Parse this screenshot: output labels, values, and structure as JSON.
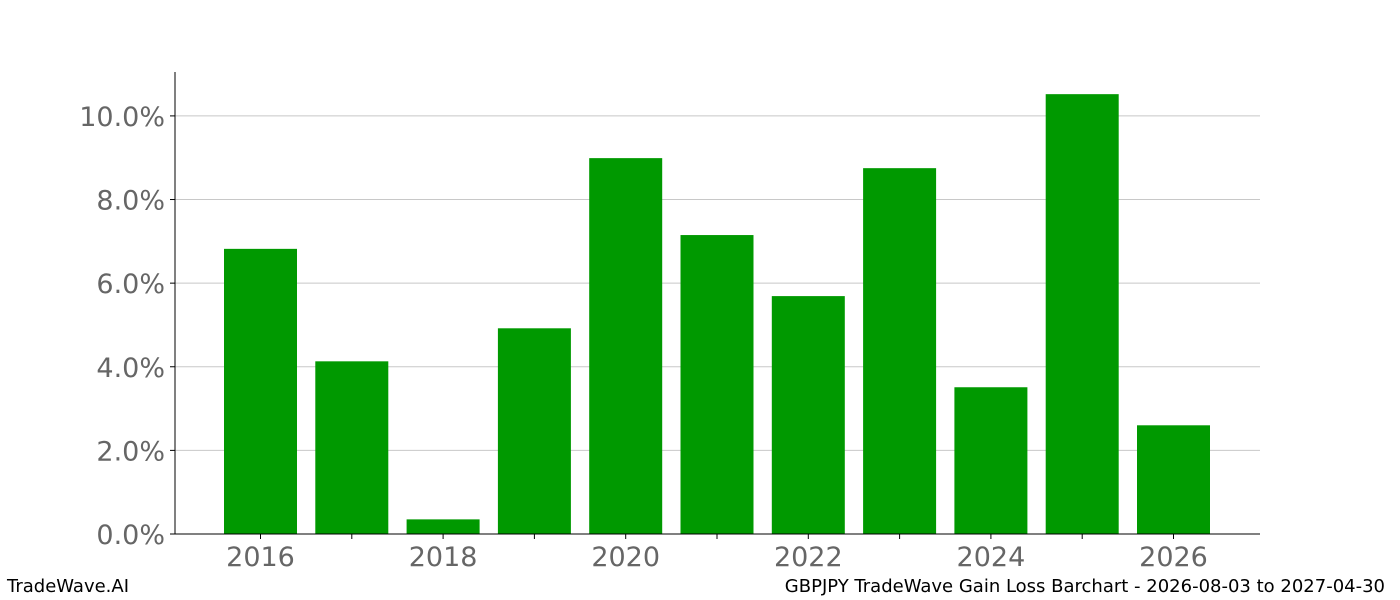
{
  "footer": {
    "brand": "TradeWave.AI",
    "caption": "GBPJPY TradeWave Gain Loss Barchart - 2026-08-03 to 2027-04-30"
  },
  "chart_data": {
    "type": "bar",
    "title": "",
    "xlabel": "",
    "ylabel": "",
    "categories": [
      "2016",
      "2017",
      "2018",
      "2019",
      "2020",
      "2021",
      "2022",
      "2023",
      "2024",
      "2025",
      "2026"
    ],
    "values": [
      6.82,
      4.13,
      0.35,
      4.92,
      8.99,
      7.15,
      5.69,
      8.75,
      3.51,
      10.52,
      2.6
    ],
    "x_tick_labels": [
      "2016",
      "2018",
      "2020",
      "2022",
      "2024",
      "2026"
    ],
    "y_ticks": [
      0,
      2,
      4,
      6,
      8,
      10
    ],
    "y_tick_labels": [
      "0.0%",
      "2.0%",
      "4.0%",
      "6.0%",
      "8.0%",
      "10.0%"
    ],
    "ylim": [
      0,
      11.05
    ],
    "grid": true,
    "bar_color": "#009900",
    "grid_color": "#c8c8c8",
    "tick_label_color": "#666666"
  }
}
